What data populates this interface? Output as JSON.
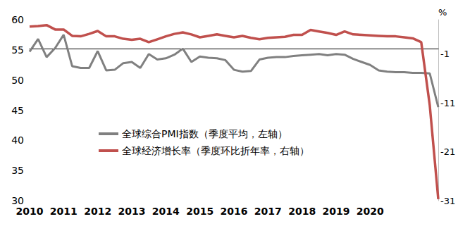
{
  "chart_data": {
    "type": "line",
    "categories": [
      "2010",
      null,
      null,
      null,
      "2011",
      null,
      null,
      null,
      "2012",
      null,
      null,
      null,
      "2013",
      null,
      null,
      null,
      "2014",
      null,
      null,
      null,
      "2015",
      null,
      null,
      null,
      "2016",
      null,
      null,
      null,
      "2017",
      null,
      null,
      null,
      "2018",
      null,
      null,
      null,
      "2019",
      null,
      null,
      null,
      "2020",
      null,
      null,
      null,
      null,
      null,
      null,
      null,
      null
    ],
    "series": [
      {
        "name": "全球综合PMI指数（季度平均，左轴）",
        "color": "#808080",
        "axis": "y",
        "values": [
          54.7,
          56.8,
          53.8,
          55.3,
          57.5,
          52.3,
          52.0,
          52.0,
          54.8,
          51.6,
          51.7,
          52.8,
          53.0,
          52.0,
          54.3,
          53.4,
          53.6,
          54.2,
          55.2,
          53.0,
          53.9,
          53.7,
          53.6,
          53.3,
          51.7,
          51.4,
          51.5,
          53.4,
          53.7,
          53.8,
          53.8,
          54.0,
          54.1,
          54.2,
          54.3,
          54.1,
          54.3,
          54.2,
          53.5,
          53.0,
          52.5,
          51.6,
          51.4,
          51.3,
          51.3,
          51.2,
          51.2,
          51.1,
          45.5
        ]
      },
      {
        "name": "全球经济增长率（季度环比折年率，右轴）",
        "color": "#c0504d",
        "axis": "y2",
        "values": [
          4.6,
          4.7,
          4.9,
          4.0,
          4.0,
          2.7,
          2.6,
          3.1,
          3.7,
          2.6,
          2.6,
          2.1,
          1.9,
          2.1,
          1.4,
          2.0,
          2.6,
          3.1,
          3.4,
          3.0,
          2.4,
          2.7,
          3.0,
          2.7,
          2.4,
          2.7,
          2.3,
          2.0,
          2.3,
          2.4,
          2.5,
          2.9,
          2.9,
          3.9,
          3.6,
          3.3,
          2.9,
          3.6,
          3.0,
          2.9,
          2.8,
          2.7,
          2.6,
          2.6,
          2.4,
          2.2,
          1.4,
          -11.5,
          -30.7
        ]
      }
    ],
    "ylim": [
      30,
      60
    ],
    "yticks": [
      30,
      35,
      40,
      45,
      50,
      55,
      60
    ],
    "y2label": "%",
    "y2lim": [
      -31,
      6
    ],
    "y2ticks": [
      -31,
      -21,
      -11,
      -1
    ],
    "grid": false,
    "legend": "left"
  }
}
